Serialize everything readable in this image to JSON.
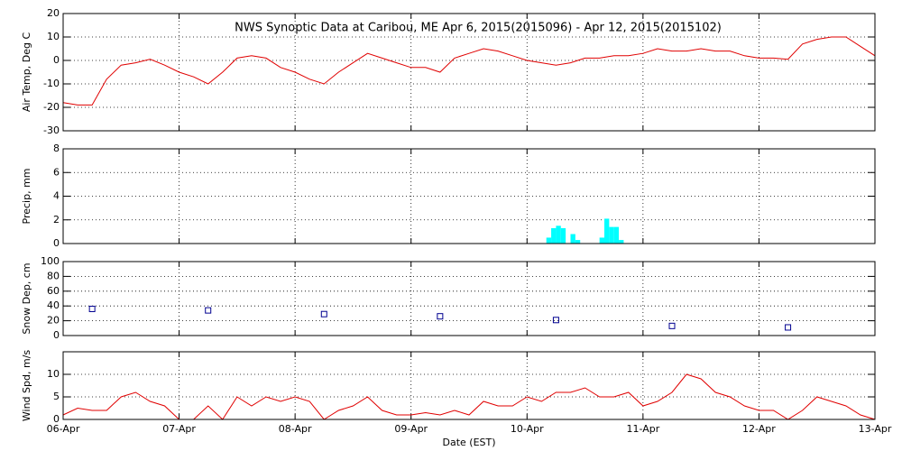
{
  "chart_data": [
    {
      "type": "line",
      "title": "NWS Synoptic Data at Caribou, ME   Apr  6, 2015(2015096) - Apr 12, 2015(2015102)",
      "y_label": "Air Temp, Deg C",
      "color": "#e00000",
      "x": [
        0,
        0.125,
        0.25,
        0.375,
        0.5,
        0.625,
        0.75,
        0.875,
        1,
        1.125,
        1.25,
        1.375,
        1.5,
        1.625,
        1.75,
        1.875,
        2,
        2.125,
        2.25,
        2.375,
        2.5,
        2.625,
        2.75,
        2.875,
        3,
        3.125,
        3.25,
        3.375,
        3.5,
        3.625,
        3.75,
        3.875,
        4,
        4.125,
        4.25,
        4.375,
        4.5,
        4.625,
        4.75,
        4.875,
        5,
        5.125,
        5.25,
        5.375,
        5.5,
        5.625,
        5.75,
        5.875,
        6,
        6.125,
        6.25,
        6.375,
        6.5,
        6.625,
        6.75,
        6.875,
        7
      ],
      "values": [
        -18,
        -19,
        -19,
        -8,
        -2,
        -1,
        0.5,
        -2,
        -5,
        -7,
        -10,
        -5,
        1,
        2,
        1,
        -3,
        -5,
        -8,
        -10,
        -5,
        -1,
        3,
        1,
        -1,
        -3,
        -3,
        -5,
        1,
        3,
        5,
        4,
        2,
        0,
        -1,
        -2,
        -1,
        1,
        1,
        2,
        2,
        3,
        5,
        4,
        4,
        5,
        4,
        4,
        2,
        1,
        1,
        0.5,
        7,
        9,
        10,
        10,
        6,
        2
      ],
      "xlim": [
        0,
        7
      ],
      "xticks": [
        0,
        1,
        2,
        3,
        4,
        5,
        6,
        7
      ],
      "ylim": [
        -30,
        20
      ],
      "yticks": [
        -30,
        -20,
        -10,
        0,
        10,
        20
      ],
      "grid": true
    },
    {
      "type": "bar",
      "y_label": "Precip, mm",
      "color": "#00ffff",
      "x": [
        4.1667,
        4.2083,
        4.25,
        4.2917,
        4.3333,
        4.375,
        4.4167,
        4.4583,
        4.5,
        4.5417,
        4.5833,
        4.625,
        4.6667,
        4.7083,
        4.75,
        4.7917
      ],
      "values": [
        0.5,
        1.3,
        1.5,
        1.3,
        0,
        0.8,
        0.3,
        0,
        0,
        0,
        0,
        0.5,
        2.1,
        1.4,
        1.4,
        0.3
      ],
      "xlim": [
        0,
        7
      ],
      "xticks": [
        0,
        1,
        2,
        3,
        4,
        5,
        6,
        7
      ],
      "ylim": [
        0,
        8
      ],
      "yticks": [
        0,
        2,
        4,
        6,
        8
      ],
      "grid": true
    },
    {
      "type": "scatter",
      "y_label": "Snow Dep, cm",
      "color": "#000090",
      "x": [
        0.25,
        1.25,
        2.25,
        3.25,
        4.25,
        5.25,
        6.25
      ],
      "values": [
        36,
        34,
        29,
        26,
        21,
        13,
        11
      ],
      "xlim": [
        0,
        7
      ],
      "xticks": [
        0,
        1,
        2,
        3,
        4,
        5,
        6,
        7
      ],
      "ylim": [
        0,
        100
      ],
      "yticks": [
        0,
        20,
        40,
        60,
        80,
        100
      ],
      "grid": true
    },
    {
      "type": "line",
      "y_label": "Wind Spd, m/s",
      "x_label": "Date (EST)",
      "color": "#e00000",
      "x": [
        0,
        0.125,
        0.25,
        0.375,
        0.5,
        0.625,
        0.75,
        0.875,
        1,
        1.125,
        1.25,
        1.375,
        1.5,
        1.625,
        1.75,
        1.875,
        2,
        2.125,
        2.25,
        2.375,
        2.5,
        2.625,
        2.75,
        2.875,
        3,
        3.125,
        3.25,
        3.375,
        3.5,
        3.625,
        3.75,
        3.875,
        4,
        4.125,
        4.25,
        4.375,
        4.5,
        4.625,
        4.75,
        4.875,
        5,
        5.125,
        5.25,
        5.375,
        5.5,
        5.625,
        5.75,
        5.875,
        6,
        6.125,
        6.25,
        6.375,
        6.5,
        6.625,
        6.75,
        6.875,
        7
      ],
      "values": [
        1,
        2.5,
        2,
        2,
        5,
        6,
        4,
        3,
        0,
        0,
        3,
        0,
        5,
        3,
        5,
        4,
        5,
        4,
        0,
        2,
        3,
        5,
        2,
        1,
        1,
        1.5,
        1,
        2,
        1,
        4,
        3,
        3,
        5,
        4,
        6,
        6,
        7,
        5,
        5,
        6,
        3,
        4,
        6,
        10,
        9,
        6,
        5,
        3,
        2,
        2,
        0,
        2,
        5,
        4,
        3,
        1,
        0
      ],
      "xlim": [
        0,
        7
      ],
      "xticks": [
        {
          "value": 0,
          "label": "06-Apr"
        },
        {
          "value": 1,
          "label": "07-Apr"
        },
        {
          "value": 2,
          "label": "08-Apr"
        },
        {
          "value": 3,
          "label": "09-Apr"
        },
        {
          "value": 4,
          "label": "10-Apr"
        },
        {
          "value": 5,
          "label": "11-Apr"
        },
        {
          "value": 6,
          "label": "12-Apr"
        },
        {
          "value": 7,
          "label": "13-Apr"
        }
      ],
      "ylim": [
        0,
        15
      ],
      "yticks": [
        0,
        5,
        10
      ],
      "grid": true
    }
  ]
}
